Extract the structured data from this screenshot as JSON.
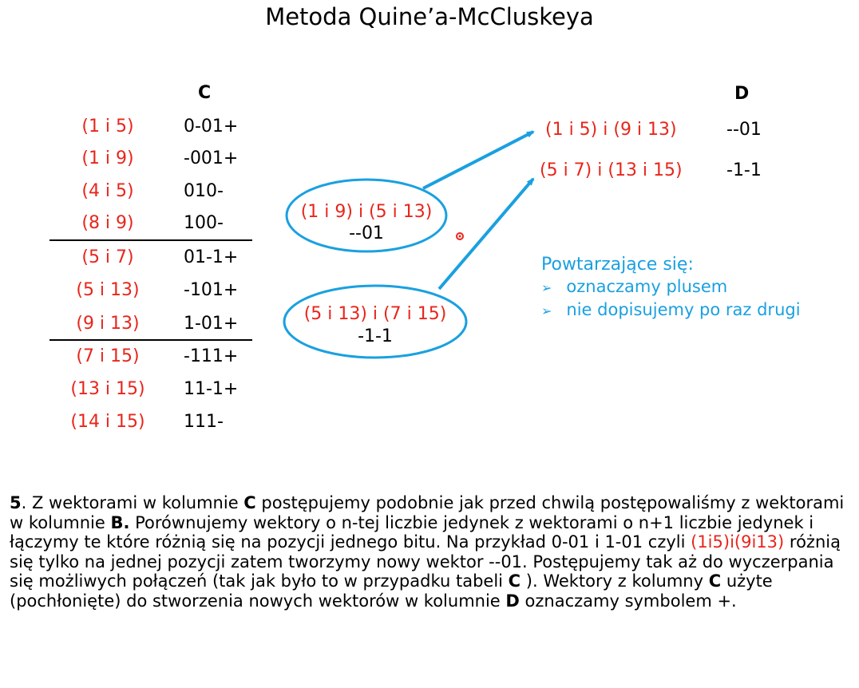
{
  "title": "Metoda Quine’a-McCluskeya",
  "column_c": {
    "header": "C",
    "rows": [
      {
        "label": "(1 i 5)",
        "vector": "0-01+"
      },
      {
        "label": "(1 i 9)",
        "vector": "-001+"
      },
      {
        "label": "(4 i 5)",
        "vector": "010-"
      },
      {
        "label": "(8 i 9)",
        "vector": "100-"
      },
      {
        "label": "(5 i 7)",
        "vector": "01-1+"
      },
      {
        "label": "(5 i 13)",
        "vector": "-101+"
      },
      {
        "label": "(9 i 13)",
        "vector": "1-01+"
      },
      {
        "label": "(7 i 15)",
        "vector": "-111+"
      },
      {
        "label": "(13 i 15)",
        "vector": "11-1+"
      },
      {
        "label": "(14 i 15)",
        "vector": "111-"
      }
    ]
  },
  "column_d": {
    "header": "D",
    "rows": [
      {
        "label": "(1 i 5) i (9 i 13)",
        "vector": "--01"
      },
      {
        "label": "(5 i 7) i (13 i 15)",
        "vector": "-1-1"
      }
    ]
  },
  "ellipses": [
    {
      "label": "(1 i 9) i (5 i 13)",
      "vector": "--01"
    },
    {
      "label": "(5 i 13) i (7 i 15)",
      "vector": "-1-1"
    }
  ],
  "note": {
    "heading": "Powtarzające się:",
    "bullets": [
      "oznaczamy plusem",
      "nie dopisujemy po raz drugi"
    ],
    "bullet_glyph": "➢"
  },
  "paragraph": {
    "n": "5",
    "t1": ". Z wektorami w kolumnie ",
    "c1": "C",
    "t2": " postępujemy podobnie jak przed chwilą postępowaliśmy z wektorami w kolumnie ",
    "b1": "B.",
    "t3": " Porównujemy wektory o n-tej liczbie jedynek z wektorami o n+1 liczbie jedynek i łączymy te które różnią się na pozycji jednego bitu. Na przykład 0-01 i 1-01 czyli ",
    "red": "(1i5)i(9i13)",
    "t4": " różnią się tylko na jednej pozycji zatem tworzymy nowy wektor --01. Postępujemy tak aż do wyczerpania się możliwych połączeń (tak jak było to w przypadku tabeli ",
    "c2": "C",
    "t5": " ). Wektory z kolumny ",
    "c3": "C",
    "t6": " użyte (pochłonięte) do stworzenia nowych wektorów w kolumnie ",
    "d1": "D",
    "t7": " oznaczamy symbolem +."
  },
  "colors": {
    "red": "#e8261c",
    "blue": "#1aa0e0",
    "text": "#000000"
  }
}
